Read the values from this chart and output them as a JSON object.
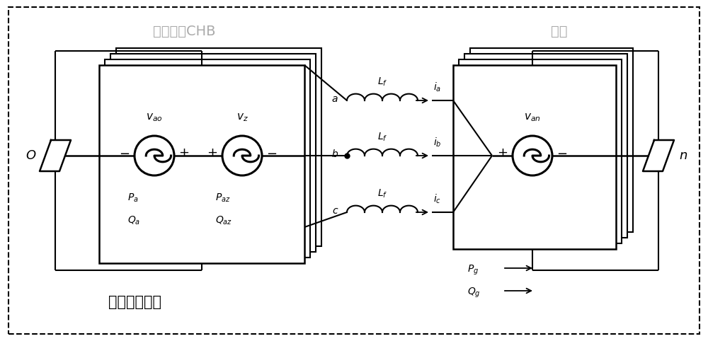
{
  "bg_color": "#ffffff",
  "title_CHB": "光伏并网CHB",
  "title_grid": "电网",
  "title_zero": "零序电压注入",
  "fig_width": 10.0,
  "fig_height": 4.82,
  "gray_color": "#aaaaaa"
}
